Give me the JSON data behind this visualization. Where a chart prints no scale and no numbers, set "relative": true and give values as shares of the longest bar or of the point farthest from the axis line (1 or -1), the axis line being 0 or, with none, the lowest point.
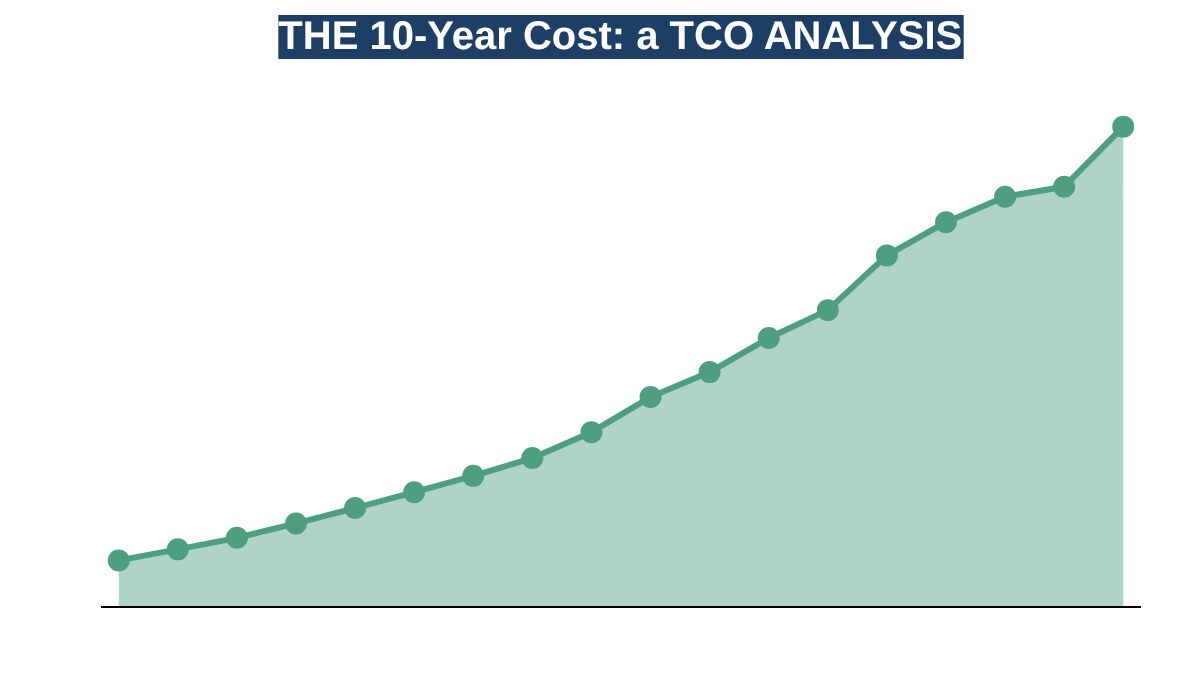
{
  "chart_data": {
    "type": "area",
    "title": "THE 10-Year Cost: a TCO ANALYSIS",
    "relative": true,
    "categories": [
      null,
      null,
      null,
      null,
      null,
      null,
      null,
      null,
      null,
      null,
      null,
      null,
      null,
      null,
      null,
      null,
      null,
      null
    ],
    "series": [
      {
        "color": "#4e9f7f",
        "values": [
          0.097,
          0.12,
          0.144,
          0.174,
          0.206,
          0.239,
          0.273,
          0.31,
          0.364,
          0.437,
          0.489,
          0.56,
          0.618,
          0.732,
          0.801,
          0.854,
          0.875,
          1.0
        ]
      }
    ],
    "marker": "circle",
    "grid": false
  }
}
